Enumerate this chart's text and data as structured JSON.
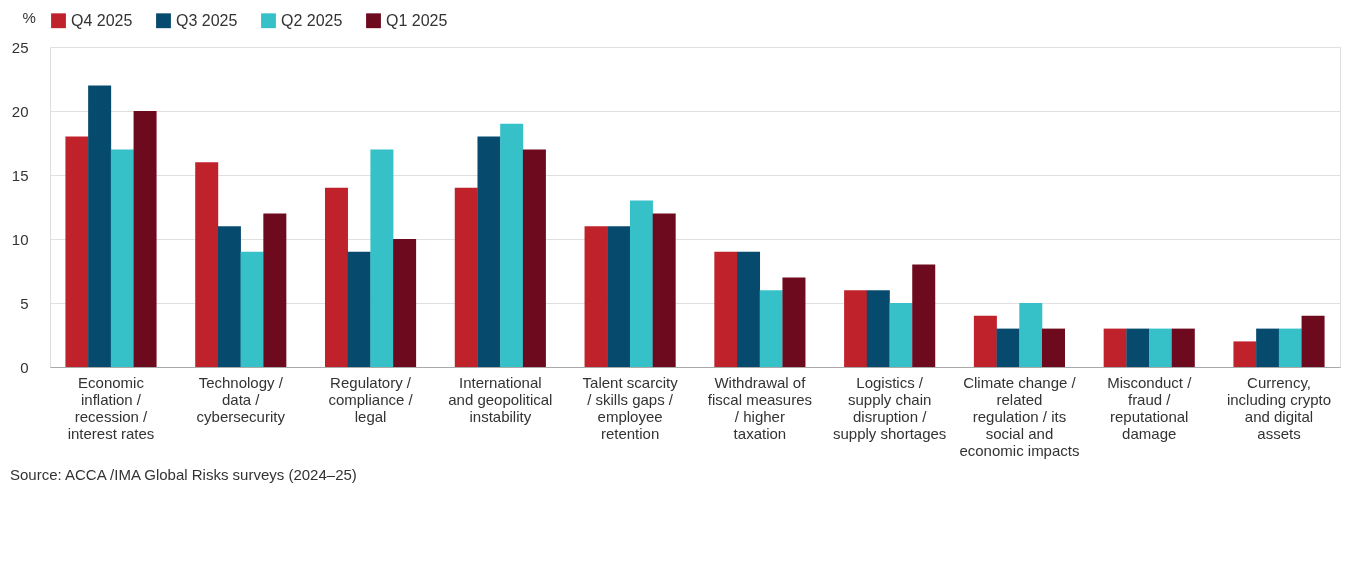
{
  "chart_data": {
    "type": "bar",
    "ylabel": "%",
    "categories": [
      "Economic inflation / recession / interest rates",
      "Technology / data / cybersecurity",
      "Regulatory / compliance / legal",
      "International and geopolitical instability",
      "Talent scarcity / skills gaps / employee retention",
      "Withdrawal of fiscal measures / higher taxation",
      "Logistics / supply chain disruption / supply shortages",
      "Climate change / related regulation / its social and economic impacts",
      "Misconduct / fraud / reputational damage",
      "Currency, including crypto and digital assets"
    ],
    "series": [
      {
        "name": "Q4 2025",
        "color": "#c0222b",
        "values": [
          18,
          16,
          14,
          14,
          11,
          9,
          6,
          4,
          3,
          2
        ]
      },
      {
        "name": "Q3 2025",
        "color": "#064a6e",
        "values": [
          22,
          11,
          9,
          18,
          11,
          9,
          6,
          3,
          3,
          3
        ]
      },
      {
        "name": "Q2 2025",
        "color": "#36c0c8",
        "values": [
          17,
          9,
          17,
          19,
          13,
          6,
          5,
          5,
          3,
          3
        ]
      },
      {
        "name": "Q1 2025",
        "color": "#6e0a1e",
        "values": [
          20,
          12,
          10,
          17,
          12,
          7,
          8,
          3,
          3,
          4
        ]
      }
    ],
    "ylim": [
      0,
      25
    ],
    "yticks": [
      0,
      5,
      10,
      15,
      20,
      25
    ],
    "grid": "y",
    "legend": "top",
    "annotations": [
      "Source: ACCA /IMA Global Risks surveys (2024–25)"
    ]
  }
}
